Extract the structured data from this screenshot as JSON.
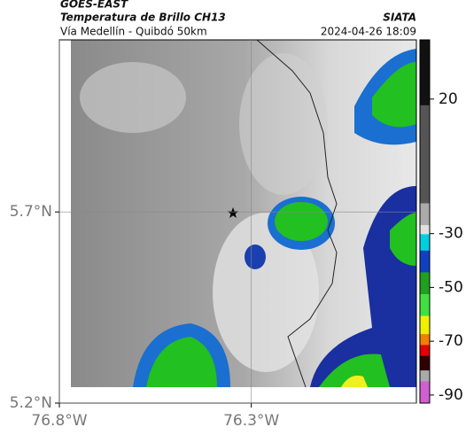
{
  "header": {
    "source": "GOES-EAST",
    "title": "Temperatura de Brillo CH13",
    "subtitle": "Vía Medellín - Quibdó 50km",
    "org": "SIATA",
    "datetime": "2024-04-26 18:09"
  },
  "map": {
    "xlim": [
      -76.8,
      -75.87
    ],
    "ylim": [
      5.2,
      6.15
    ],
    "xticks": [
      {
        "value": -76.8,
        "label": "76.8°W"
      },
      {
        "value": -76.3,
        "label": "76.3°W"
      }
    ],
    "yticks": [
      {
        "value": 5.7,
        "label": "5.7°N"
      },
      {
        "value": 5.2,
        "label": "5.2°N"
      }
    ],
    "grid": true
  },
  "colorbar": {
    "lim": [
      -93,
      42
    ],
    "ticks": [
      20,
      -30,
      -50,
      -70,
      -90
    ]
  }
}
